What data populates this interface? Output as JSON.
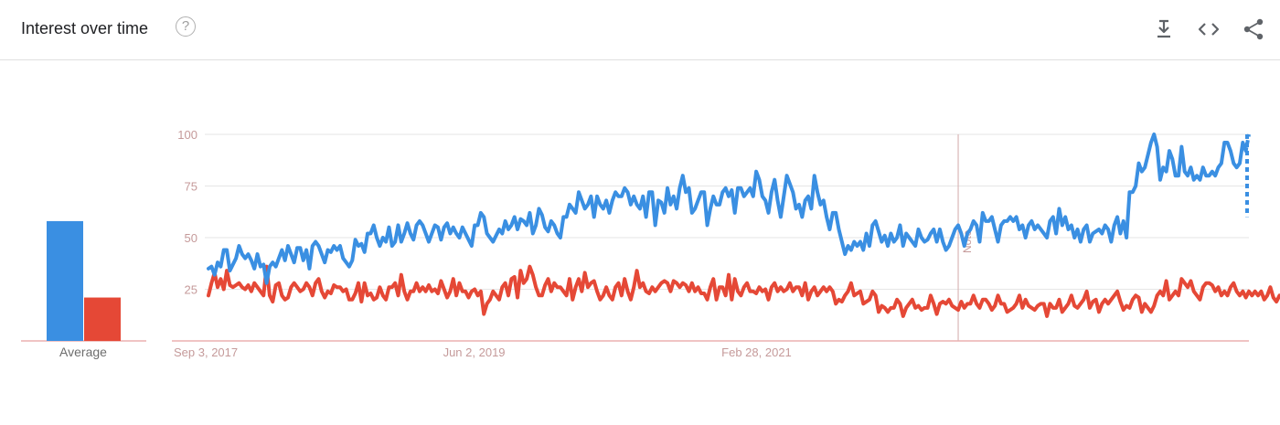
{
  "header": {
    "title": "Interest over time",
    "help_glyph": "?",
    "icons": [
      "download-icon",
      "embed-code-icon",
      "share-icon"
    ]
  },
  "colors": {
    "series_blue": "#3a8fe2",
    "series_red": "#e54836",
    "axis": "#e8a0a0",
    "grid": "#e6e6e6"
  },
  "chart_data": {
    "type": "line",
    "title": "",
    "xlabel": "",
    "ylabel": "",
    "y_ticks": [
      "100",
      "75",
      "50",
      "25"
    ],
    "x_tick_labels": [
      "Sep 3, 2017",
      "Jun 2, 2019",
      "Feb 28, 2021"
    ],
    "x_ticks_index": [
      0,
      91,
      182
    ],
    "ylim": [
      0,
      100
    ],
    "grid": true,
    "note_label": "Note",
    "note_index": 245,
    "average_label": "Average",
    "averages": [
      58,
      21
    ],
    "partial_last_point": true,
    "series": [
      {
        "color": "#3a8fe2",
        "values": [
          35,
          36,
          32,
          38,
          36,
          44,
          44,
          34,
          37,
          40,
          46,
          42,
          40,
          42,
          39,
          35,
          42,
          36,
          37,
          28,
          36,
          38,
          36,
          40,
          44,
          39,
          46,
          42,
          38,
          45,
          45,
          39,
          44,
          35,
          46,
          48,
          46,
          42,
          38,
          44,
          43,
          46,
          44,
          46,
          40,
          38,
          36,
          39,
          49,
          46,
          47,
          43,
          52,
          52,
          56,
          50,
          46,
          50,
          48,
          55,
          46,
          48,
          56,
          48,
          52,
          57,
          52,
          49,
          56,
          58,
          56,
          52,
          48,
          52,
          56,
          55,
          49,
          55,
          57,
          52,
          55,
          52,
          50,
          55,
          52,
          49,
          46,
          56,
          56,
          62,
          60,
          52,
          50,
          48,
          51,
          54,
          52,
          58,
          54,
          56,
          60,
          54,
          59,
          58,
          56,
          62,
          52,
          56,
          64,
          61,
          55,
          53,
          58,
          56,
          52,
          50,
          60,
          60,
          66,
          64,
          62,
          72,
          68,
          64,
          66,
          70,
          60,
          70,
          66,
          64,
          68,
          62,
          68,
          72,
          70,
          70,
          74,
          72,
          66,
          70,
          66,
          64,
          70,
          60,
          72,
          72,
          56,
          68,
          67,
          62,
          74,
          66,
          70,
          64,
          74,
          80,
          72,
          74,
          62,
          64,
          68,
          72,
          72,
          56,
          64,
          70,
          66,
          66,
          72,
          74,
          70,
          73,
          62,
          74,
          74,
          70,
          72,
          74,
          70,
          82,
          78,
          70,
          68,
          62,
          72,
          78,
          68,
          60,
          70,
          80,
          76,
          72,
          64,
          66,
          60,
          68,
          70,
          64,
          80,
          72,
          66,
          68,
          60,
          54,
          62,
          62,
          54,
          48,
          42,
          46,
          44,
          48,
          46,
          48,
          44,
          52,
          46,
          56,
          58,
          53,
          48,
          51,
          46,
          52,
          48,
          50,
          56,
          46,
          52,
          50,
          48,
          46,
          54,
          50,
          48,
          49,
          52,
          54,
          48,
          54,
          48,
          44,
          46,
          50,
          54,
          56,
          52,
          46,
          52,
          54,
          58,
          56,
          48,
          62,
          58,
          58,
          60,
          54,
          48,
          56,
          58,
          58,
          60,
          58,
          60,
          54,
          56,
          50,
          56,
          58,
          54,
          56,
          54,
          52,
          50,
          58,
          60,
          52,
          64,
          56,
          60,
          54,
          56,
          50,
          54,
          48,
          54,
          56,
          48,
          52,
          53,
          54,
          52,
          56,
          54,
          48,
          56,
          60,
          52,
          58,
          50,
          72,
          72,
          75,
          86,
          82,
          84,
          90,
          96,
          100,
          94,
          78,
          84,
          82,
          92,
          88,
          80,
          80,
          94,
          82,
          80,
          84,
          78,
          80,
          78,
          84,
          80,
          80,
          82,
          80,
          84,
          86,
          96,
          96,
          92,
          86,
          84,
          86,
          96,
          92,
          100
        ]
      },
      {
        "color": "#e54836",
        "values": [
          22,
          28,
          33,
          26,
          30,
          25,
          34,
          27,
          26,
          27,
          28,
          26,
          25,
          27,
          24,
          28,
          26,
          24,
          22,
          36,
          22,
          19,
          27,
          28,
          22,
          20,
          21,
          26,
          28,
          26,
          24,
          25,
          28,
          26,
          22,
          28,
          30,
          24,
          21,
          24,
          23,
          27,
          26,
          26,
          24,
          25,
          20,
          20,
          23,
          28,
          19,
          28,
          22,
          23,
          20,
          21,
          26,
          22,
          20,
          26,
          26,
          28,
          22,
          32,
          24,
          20,
          24,
          24,
          28,
          24,
          26,
          24,
          27,
          24,
          25,
          23,
          29,
          25,
          21,
          24,
          30,
          22,
          28,
          24,
          24,
          21,
          24,
          25,
          22,
          24,
          13,
          18,
          20,
          24,
          22,
          20,
          26,
          28,
          22,
          30,
          31,
          21,
          34,
          28,
          30,
          36,
          32,
          26,
          22,
          22,
          27,
          30,
          24,
          28,
          26,
          26,
          24,
          22,
          30,
          20,
          26,
          30,
          24,
          33,
          26,
          28,
          29,
          24,
          20,
          22,
          26,
          22,
          20,
          26,
          28,
          22,
          30,
          24,
          20,
          26,
          34,
          26,
          28,
          24,
          23,
          26,
          24,
          26,
          28,
          29,
          28,
          24,
          29,
          28,
          26,
          28,
          27,
          24,
          28,
          24,
          26,
          23,
          23,
          20,
          26,
          30,
          20,
          26,
          26,
          22,
          32,
          20,
          30,
          24,
          22,
          26,
          28,
          24,
          24,
          23,
          26,
          24,
          25,
          20,
          26,
          28,
          24,
          26,
          24,
          25,
          28,
          24,
          26,
          26,
          22,
          28,
          20,
          24,
          26,
          22,
          24,
          26,
          24,
          26,
          24,
          18,
          20,
          19,
          22,
          24,
          28,
          22,
          23,
          24,
          18,
          19,
          20,
          24,
          22,
          14,
          17,
          16,
          14,
          16,
          16,
          20,
          18,
          12,
          16,
          18,
          20,
          16,
          17,
          15,
          16,
          16,
          22,
          18,
          13,
          18,
          19,
          18,
          20,
          17,
          16,
          15,
          19,
          16,
          18,
          18,
          22,
          18,
          16,
          20,
          20,
          18,
          15,
          17,
          22,
          18,
          18,
          14,
          15,
          16,
          18,
          22,
          16,
          20,
          17,
          16,
          15,
          17,
          18,
          18,
          12,
          18,
          16,
          16,
          20,
          14,
          16,
          18,
          22,
          17,
          16,
          18,
          20,
          24,
          16,
          19,
          20,
          14,
          18,
          20,
          18,
          20,
          22,
          24,
          19,
          15,
          17,
          16,
          20,
          22,
          21,
          14,
          18,
          16,
          14,
          17,
          22,
          24,
          22,
          29,
          20,
          22,
          24,
          22,
          30,
          28,
          26,
          29,
          24,
          22,
          20,
          26,
          28,
          28,
          27,
          24,
          26,
          22,
          24,
          22,
          26,
          28,
          24,
          22,
          24,
          21,
          24,
          22,
          24,
          22,
          24,
          20,
          22,
          26,
          21,
          19,
          22,
          20
        ]
      }
    ]
  }
}
